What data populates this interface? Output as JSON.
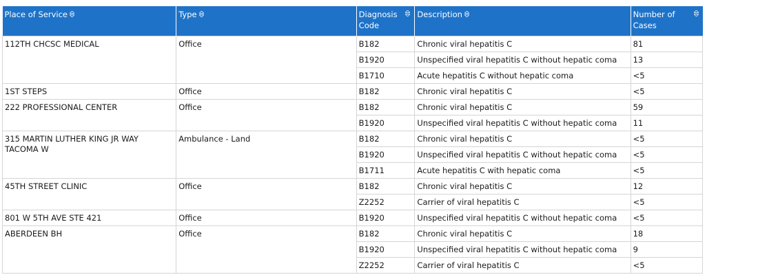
{
  "table": {
    "headers": {
      "place": "Place of Service",
      "type": "Type",
      "diag": "Diagnosis Code",
      "desc": "Description",
      "cases": "Number of Cases"
    },
    "groups": [
      {
        "place": "112TH CHCSC MEDICAL",
        "type": "Office",
        "rows": [
          {
            "code": "B182",
            "desc": "Chronic viral hepatitis C",
            "cases": "81"
          },
          {
            "code": "B1920",
            "desc": "Unspecified viral hepatitis C without hepatic coma",
            "cases": "13"
          },
          {
            "code": "B1710",
            "desc": "Acute hepatitis C without hepatic coma",
            "cases": "<5"
          }
        ]
      },
      {
        "place": "1ST STEPS",
        "type": "Office",
        "rows": [
          {
            "code": "B182",
            "desc": "Chronic viral hepatitis C",
            "cases": "<5"
          }
        ]
      },
      {
        "place": "222 PROFESSIONAL CENTER",
        "type": "Office",
        "rows": [
          {
            "code": "B182",
            "desc": "Chronic viral hepatitis C",
            "cases": "59"
          },
          {
            "code": "B1920",
            "desc": "Unspecified viral hepatitis C without hepatic coma",
            "cases": "11"
          }
        ]
      },
      {
        "place": "315 MARTIN LUTHER KING JR WAY TACOMA W",
        "type": "Ambulance - Land",
        "rows": [
          {
            "code": "B182",
            "desc": "Chronic viral hepatitis C",
            "cases": "<5"
          },
          {
            "code": "B1920",
            "desc": "Unspecified viral hepatitis C without hepatic coma",
            "cases": "<5"
          },
          {
            "code": "B1711",
            "desc": "Acute hepatitis C with hepatic coma",
            "cases": "<5"
          }
        ]
      },
      {
        "place": "45TH STREET CLINIC",
        "type": "Office",
        "rows": [
          {
            "code": "B182",
            "desc": "Chronic viral hepatitis C",
            "cases": "12"
          },
          {
            "code": "Z2252",
            "desc": "Carrier of viral hepatitis C",
            "cases": "<5"
          }
        ]
      },
      {
        "place": "801 W 5TH AVE STE 421",
        "type": "Office",
        "rows": [
          {
            "code": "B1920",
            "desc": "Unspecified viral hepatitis C without hepatic coma",
            "cases": "<5"
          }
        ]
      },
      {
        "place": "ABERDEEN BH",
        "type": "Office",
        "rows": [
          {
            "code": "B182",
            "desc": "Chronic viral hepatitis C",
            "cases": "18"
          },
          {
            "code": "B1920",
            "desc": "Unspecified viral hepatitis C without hepatic coma",
            "cases": "9"
          },
          {
            "code": "Z2252",
            "desc": "Carrier of viral hepatitis C",
            "cases": "<5"
          }
        ]
      }
    ]
  }
}
